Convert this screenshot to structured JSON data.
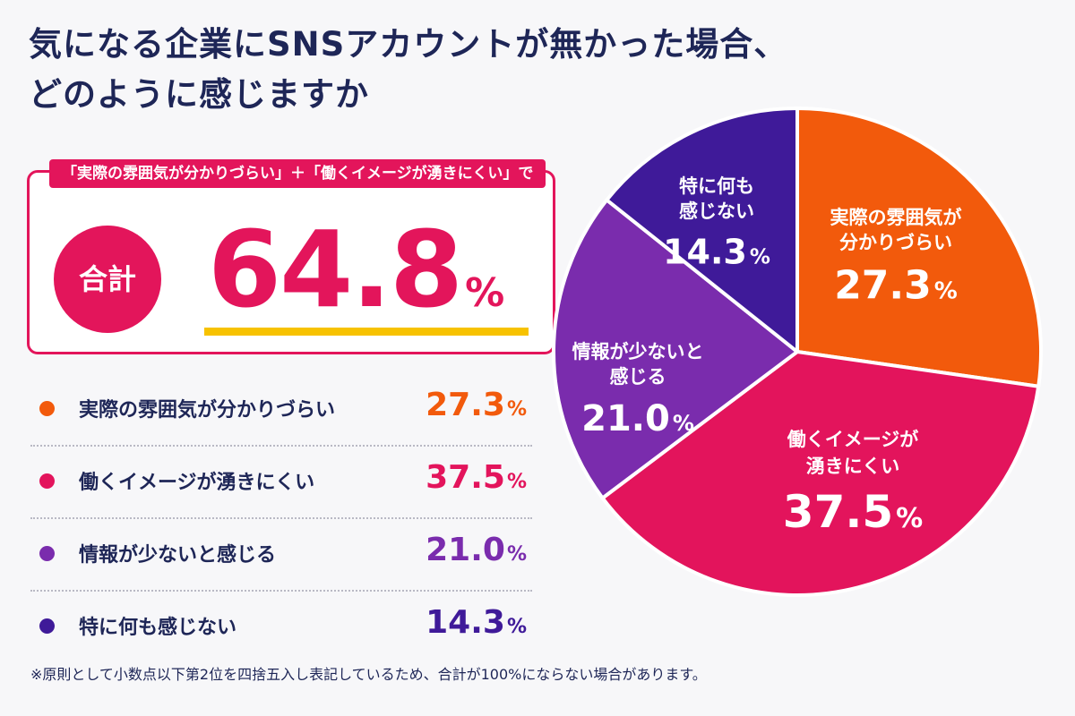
{
  "title": {
    "line1": "気になる企業にSNSアカウントが無かった場合、",
    "line2": "どのように感じますか"
  },
  "summary": {
    "tag": "「実際の雰囲気が分かりづらい」＋「働くイメージが湧きにくい」で",
    "badge": "合計",
    "value": "64.8",
    "unit": "%"
  },
  "footnote": "※原則として小数点以下第2位を四捨五入し表記しているため、合計が100%にならない場合があります。",
  "chart_data": {
    "type": "pie",
    "unit": "%",
    "slices": [
      {
        "name": "実際の雰囲気が分かりづらい",
        "value": 27.3,
        "color": "#f25a0c",
        "pie_lines": [
          "実際の雰囲気が",
          "分かりづらい"
        ]
      },
      {
        "name": "働くイメージが湧きにくい",
        "value": 37.5,
        "color": "#e3145c",
        "pie_lines": [
          "働くイメージが",
          "湧きにくい"
        ]
      },
      {
        "name": "情報が少ないと感じる",
        "value": 21.0,
        "color": "#7a2cad",
        "pie_lines": [
          "情報が少ないと",
          "感じる"
        ]
      },
      {
        "name": "特に何も感じない",
        "value": 14.3,
        "color": "#3f1a99",
        "pie_lines": [
          "特に何も",
          "感じない"
        ]
      }
    ],
    "value_labels": [
      "27.3",
      "37.5",
      "21.0",
      "14.3"
    ]
  }
}
